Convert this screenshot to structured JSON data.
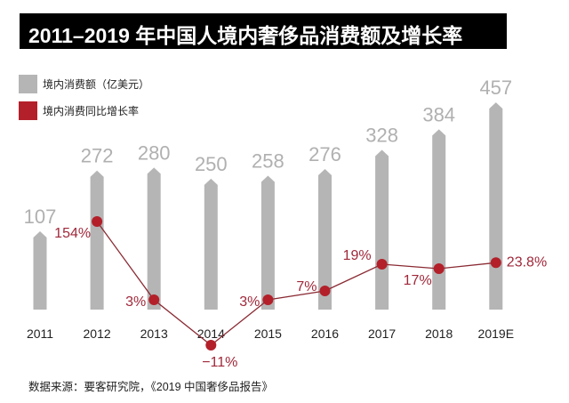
{
  "chart_data": {
    "type": "bar+line",
    "title": "2011–2019 年中国人境内奢侈品消费额及增长率",
    "categories": [
      "2011",
      "2012",
      "2013",
      "2014",
      "2015",
      "2016",
      "2017",
      "2018",
      "2019E"
    ],
    "series": [
      {
        "name": "境内消费额（亿美元）",
        "type": "bar",
        "color": "#b5b5b5",
        "values": [
          107,
          272,
          280,
          250,
          258,
          276,
          328,
          384,
          457
        ],
        "labels": [
          "107",
          "272",
          "280",
          "250",
          "258",
          "276",
          "328",
          "384",
          "457"
        ]
      },
      {
        "name": "境内消费同比增长率",
        "type": "line",
        "color": "#b3202a",
        "values": [
          null,
          154,
          3,
          -11,
          3,
          7,
          19,
          17,
          23.8
        ],
        "labels": [
          "",
          "154%",
          "3%",
          "−11%",
          "3%",
          "7%",
          "19%",
          "17%",
          "23.8%"
        ]
      }
    ],
    "grid": false,
    "legend_position": "top-left",
    "source": "数据来源：要客研究院，《2019 中国奢侈品报告》"
  }
}
